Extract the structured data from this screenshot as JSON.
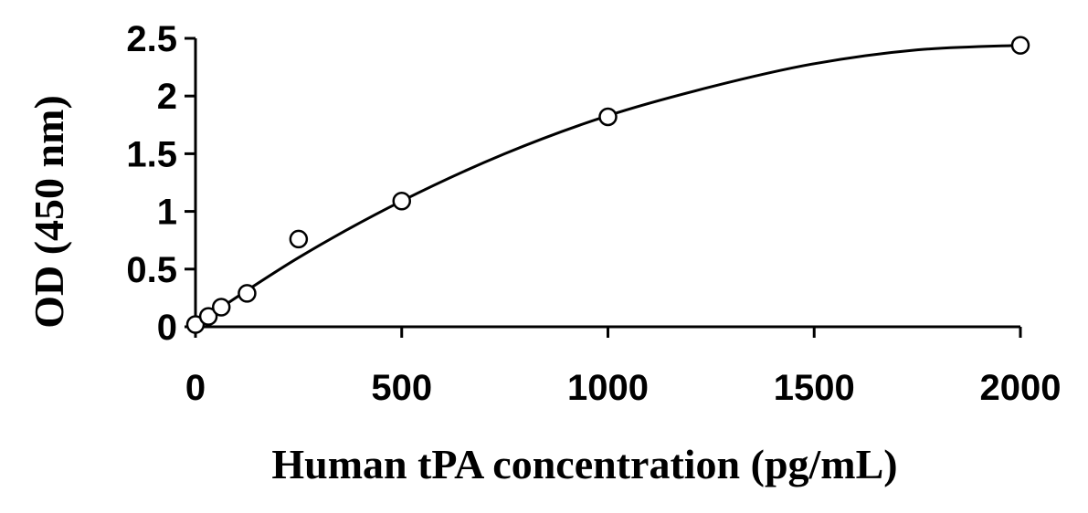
{
  "chart_data": {
    "type": "scatter",
    "title": "",
    "xlabel": "Human tPA concentration (pg/mL)",
    "ylabel": "OD (450 nm)",
    "xlim": [
      0,
      2000
    ],
    "ylim": [
      0,
      2.5
    ],
    "xticks": [
      0,
      500,
      1000,
      1500,
      2000
    ],
    "yticks": [
      0,
      0.5,
      1,
      1.5,
      2,
      2.5
    ],
    "xtick_labels": [
      "0",
      "500",
      "1000",
      "1500",
      "2000"
    ],
    "ytick_labels": [
      "0",
      "0.5",
      "1",
      "1.5",
      "2",
      "2.5"
    ],
    "grid": false,
    "legend": "none",
    "marker": "open-circle",
    "color": "#000000",
    "series": [
      {
        "x": [
          0,
          31.25,
          62.5,
          125,
          250,
          500,
          1000,
          2000
        ],
        "y": [
          0.02,
          0.09,
          0.17,
          0.29,
          0.76,
          1.09,
          1.82,
          2.44
        ]
      }
    ],
    "fit_curve": {
      "type": "smooth",
      "x": [
        0,
        250,
        500,
        750,
        1000,
        1250,
        1500,
        1750,
        2000
      ],
      "y": [
        0.02,
        0.6,
        1.09,
        1.5,
        1.83,
        2.08,
        2.28,
        2.4,
        2.44
      ]
    }
  }
}
